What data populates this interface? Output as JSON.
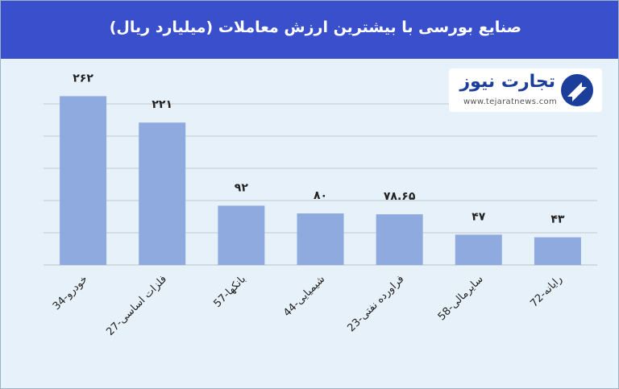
{
  "header": {
    "title": "صنایع بورسی با بیشترین ارزش معاملات  (میلیارد ریال)"
  },
  "logo": {
    "name": "تجارت نیوز",
    "url": "www.tejaratnews.com"
  },
  "colors": {
    "bar": "#8eaadf",
    "title_bar": "#3a4fcb",
    "background": "#e6f1fa"
  },
  "chart_data": {
    "type": "bar",
    "title": "صنایع بورسی با بیشترین ارزش معاملات  (میلیارد ریال)",
    "categories": [
      "34-خودرو",
      "27-فلزات اساسی",
      "57-بانکها",
      "44-شیمیایی",
      "23-فراورده نفتی",
      "58-سایرمالی",
      "72-رایانه"
    ],
    "values": [
      262,
      221,
      92,
      80,
      78.65,
      47,
      43
    ],
    "value_labels": [
      "۲۶۲",
      "۲۲۱",
      "۹۲",
      "۸۰",
      "۷۸.۶۵",
      "۴۷",
      "۴۳"
    ],
    "ylim": [
      0,
      300
    ],
    "grid": true,
    "legend": "none"
  }
}
